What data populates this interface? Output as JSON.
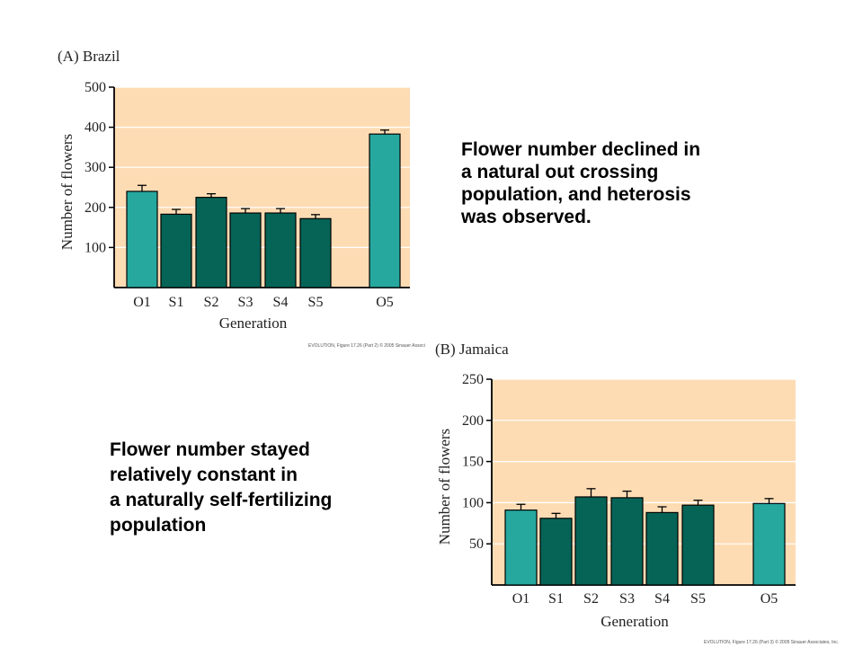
{
  "captions": {
    "brazil": [
      "Flower number declined in",
      "a natural out crossing",
      "population, and heterosis",
      "was observed."
    ],
    "jamaica": [
      "Flower number stayed",
      "relatively constant in",
      "a naturally self-fertilizing",
      "population"
    ]
  },
  "credits": {
    "brazil": "EVOLUTION, Figure 17.26 (Part 2)  © 2005 Sinauer Associ",
    "jamaica": "EVOLUTION, Figure 17.26 (Part 3)  © 2005 Sinauer Associates, Inc."
  },
  "colors": {
    "plot_background": "#fddcb4",
    "outcrossed_bar": "#26a89e",
    "selfed_bar": "#066457",
    "bar_outline": "#000000"
  },
  "chart_data": [
    {
      "type": "bar",
      "panel_label": "(A)  Brazil",
      "categories": [
        "O1",
        "S1",
        "S2",
        "S3",
        "S4",
        "S5",
        "O5"
      ],
      "values": [
        240,
        183,
        225,
        186,
        186,
        172,
        383
      ],
      "error": [
        15,
        12,
        9,
        11,
        11,
        10,
        10
      ],
      "bar_kind": [
        "outcrossed",
        "selfed",
        "selfed",
        "selfed",
        "selfed",
        "selfed",
        "outcrossed"
      ],
      "xlabel": "Generation",
      "ylabel": "Number of flowers",
      "ylim": [
        0,
        500
      ],
      "yticks": [
        100,
        200,
        300,
        400,
        500
      ],
      "grid": true
    },
    {
      "type": "bar",
      "panel_label": "(B)  Jamaica",
      "categories": [
        "O1",
        "S1",
        "S2",
        "S3",
        "S4",
        "S5",
        "O5"
      ],
      "values": [
        91,
        81,
        107,
        106,
        88,
        97,
        99
      ],
      "error": [
        7,
        6,
        10,
        8,
        7,
        6,
        6
      ],
      "bar_kind": [
        "outcrossed",
        "selfed",
        "selfed",
        "selfed",
        "selfed",
        "selfed",
        "outcrossed"
      ],
      "xlabel": "Generation",
      "ylabel": "Number of flowers",
      "ylim": [
        0,
        250
      ],
      "yticks": [
        50,
        100,
        150,
        200,
        250
      ],
      "grid": true
    }
  ]
}
